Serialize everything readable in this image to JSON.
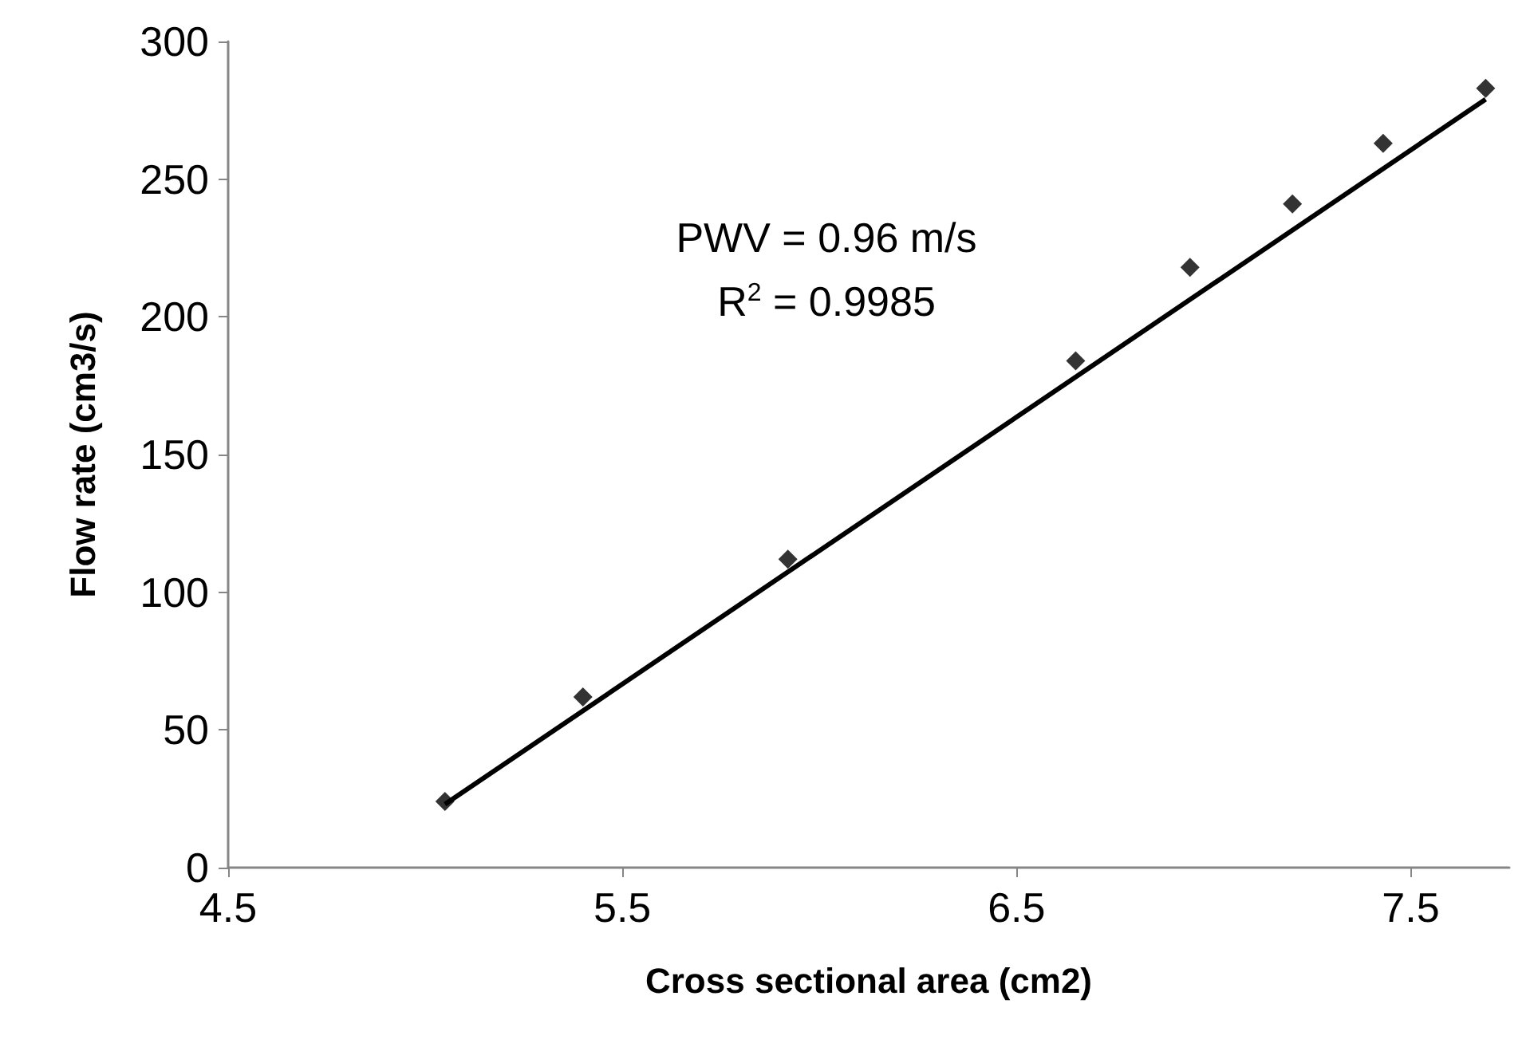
{
  "chart_data": {
    "type": "scatter",
    "xlabel": "Cross sectional area (cm2)",
    "ylabel": "Flow rate (cm3/s)",
    "xlim": [
      4.5,
      7.75
    ],
    "xticks": [
      4.5,
      5.5,
      6.5,
      7.5
    ],
    "ylim": [
      0,
      300
    ],
    "yticks": [
      0,
      50,
      100,
      150,
      200,
      250,
      300
    ],
    "grid": false,
    "annotations": [
      "PWV = 0.96 m/s",
      "R$^{2}$ = 0.9985"
    ],
    "series": [
      {
        "color": "#000000",
        "marker": "diamond",
        "x": [
          5.05,
          5.4,
          5.92,
          6.65,
          6.94,
          7.2,
          7.43,
          7.69
        ],
        "values": [
          24,
          62,
          112,
          184,
          218,
          241,
          263,
          283
        ]
      },
      {
        "type": "line",
        "color": "#000000",
        "marker": "none",
        "line_style": "solid",
        "x": [
          5.05,
          7.69
        ],
        "values": [
          23,
          279
        ]
      }
    ]
  }
}
